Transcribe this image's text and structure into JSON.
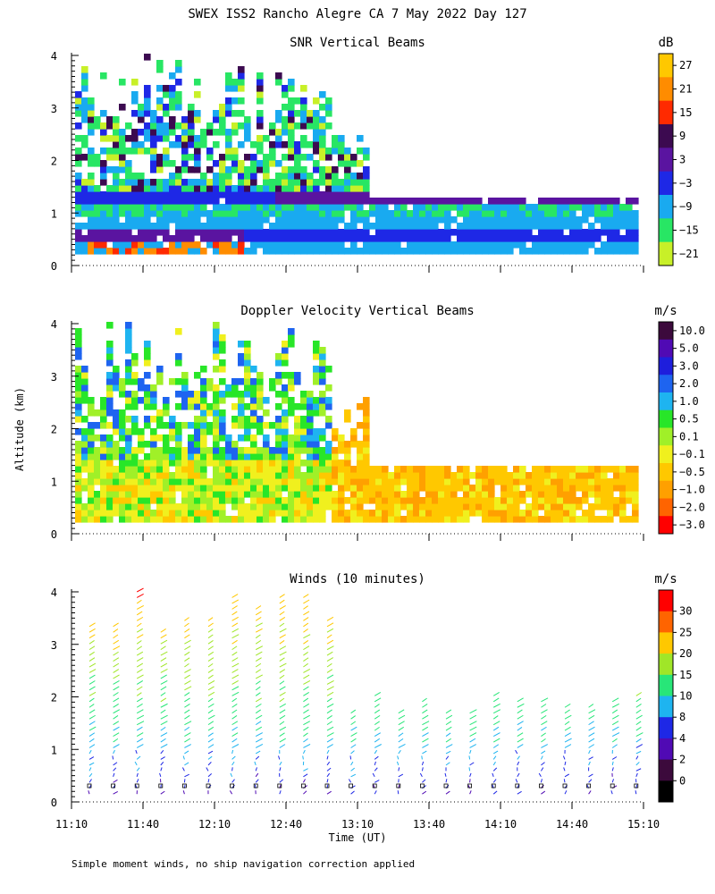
{
  "page": {
    "title": "SWEX ISS2 Rancho Alegre CA   7 May 2022 Day 127",
    "footnote": "Simple moment winds, no ship navigation correction applied"
  },
  "chart_data": [
    {
      "id": "snr",
      "type": "heatmap",
      "title": "SNR Vertical Beams",
      "ylabel": "Altitude (km)",
      "ylim": [
        0,
        4
      ],
      "yticks": [
        "0",
        "1",
        "2",
        "3",
        "4"
      ],
      "colorbar": {
        "unit": "dB",
        "labels": [
          "27",
          "21",
          "15",
          "9",
          "3",
          "−3",
          "−9",
          "−15",
          "−21"
        ],
        "colors": [
          "#ffc800",
          "#ff8c00",
          "#ff2a00",
          "#3c0a50",
          "#5a14a0",
          "#1e28e6",
          "#19aaf0",
          "#28e664",
          "#c8f028"
        ]
      }
    },
    {
      "id": "doppler",
      "type": "heatmap",
      "title": "Doppler Velocity Vertical Beams",
      "ylim": [
        0,
        4
      ],
      "yticks": [
        "0",
        "1",
        "2",
        "3",
        "4"
      ],
      "colorbar": {
        "unit": "m/s",
        "labels": [
          "10.0",
          "5.0",
          "3.0",
          "2.0",
          "1.0",
          "0.5",
          "0.1",
          "−0.1",
          "−0.5",
          "−1.0",
          "−2.0",
          "−3.0"
        ],
        "colors": [
          "#3c0a3c",
          "#500ab4",
          "#1e1edc",
          "#1e64f0",
          "#1eb4f0",
          "#28e628",
          "#a0f028",
          "#f0f01e",
          "#ffc800",
          "#ffa000",
          "#ff6400",
          "#ff0000"
        ]
      }
    },
    {
      "id": "winds",
      "type": "scatter",
      "title": "Winds (10 minutes)",
      "ylim": [
        0,
        4
      ],
      "yticks": [
        "0",
        "1",
        "2",
        "3",
        "4"
      ],
      "xlabel": "Time (UT)",
      "xticks": [
        "11:10",
        "11:40",
        "12:10",
        "12:40",
        "13:10",
        "13:40",
        "14:10",
        "14:40",
        "15:10"
      ],
      "colorbar": {
        "unit": "m/s",
        "labels": [
          "30",
          "25",
          "20",
          "15",
          "10",
          "8",
          "4",
          "2",
          "0"
        ],
        "colors": [
          "#ff0000",
          "#ff6400",
          "#ffc800",
          "#a0e628",
          "#28e678",
          "#1eb4f0",
          "#1e28e6",
          "#500ab4",
          "#3c0a3c",
          "#000000"
        ]
      }
    }
  ]
}
